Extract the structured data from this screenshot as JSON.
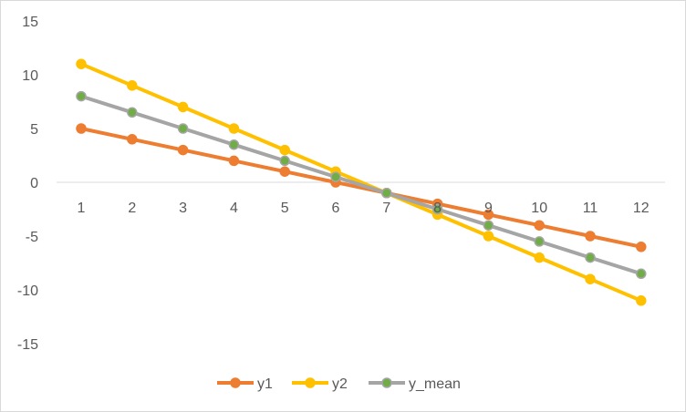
{
  "chart_data": {
    "type": "line",
    "title": "",
    "xlabel": "",
    "ylabel": "",
    "x": [
      1,
      2,
      3,
      4,
      5,
      6,
      7,
      8,
      9,
      10,
      11,
      12
    ],
    "ylim": [
      -15,
      15
    ],
    "yticks": [
      15,
      10,
      5,
      0,
      -5,
      -10,
      -15
    ],
    "grid": false,
    "legend_position": "bottom",
    "series": [
      {
        "name": "y1",
        "color": "#ED7D31",
        "values": [
          5,
          4,
          3,
          2,
          1,
          0,
          -1,
          -2,
          -3,
          -4,
          -5,
          -6
        ]
      },
      {
        "name": "y2",
        "color": "#FFC000",
        "values": [
          11,
          9,
          7,
          5,
          3,
          1,
          -1,
          -3,
          -5,
          -7,
          -9,
          -11
        ]
      },
      {
        "name": "y_mean",
        "color": "#A5A5A5",
        "marker_color": "#70AD47",
        "values": [
          8,
          6.5,
          5,
          3.5,
          2,
          0.5,
          -1,
          -2.5,
          -4,
          -5.5,
          -7,
          -8.5
        ]
      }
    ]
  }
}
